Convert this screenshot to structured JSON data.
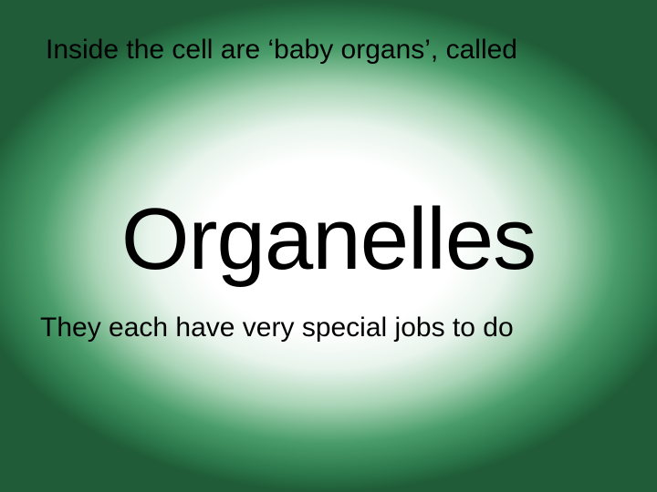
{
  "slide": {
    "intro_text": "Inside the cell are ‘baby organs’, called",
    "main_title": "Organelles",
    "sub_text": "They each have very special jobs to do",
    "background_gradient": {
      "type": "radial",
      "center_color": "#ffffff",
      "mid_color": "#a8d4b5",
      "edge_color": "#2d7a4d",
      "corner_color": "#1f5c37"
    },
    "text_color": "#000000",
    "intro_fontsize": 30,
    "title_fontsize": 96,
    "sub_fontsize": 30,
    "font_family": "Arial"
  }
}
